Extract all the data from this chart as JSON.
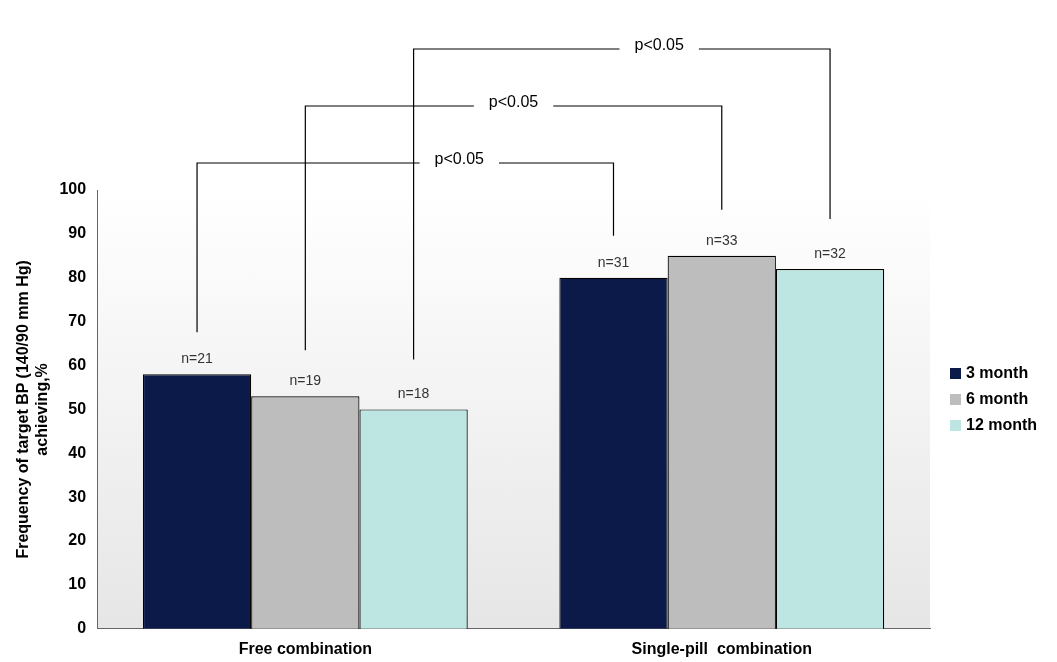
{
  "chart_data": {
    "type": "bar",
    "ylabel": "Frequency of target BP (140/90 mm Hg)\nachieving,%",
    "categories": [
      "Free combination",
      "Single-pill  combination"
    ],
    "series": [
      {
        "name": "3 month",
        "color": "#0c1a4a",
        "values": [
          58,
          80
        ]
      },
      {
        "name": "6 month",
        "color": "#bdbdbd",
        "values": [
          53,
          85
        ]
      },
      {
        "name": "12 month",
        "color": "#bde6e3",
        "values": [
          50,
          82
        ]
      }
    ],
    "ylim": [
      0,
      100
    ],
    "yticks": [
      0,
      10,
      20,
      30,
      40,
      50,
      60,
      70,
      80,
      90,
      100
    ],
    "grid": false,
    "legend": "right",
    "annotations": [
      "p<0.05",
      "p<0.05",
      "p<0.05",
      "n=21",
      "n=19",
      "n=18",
      "n=31",
      "n=33",
      "n=32"
    ]
  }
}
